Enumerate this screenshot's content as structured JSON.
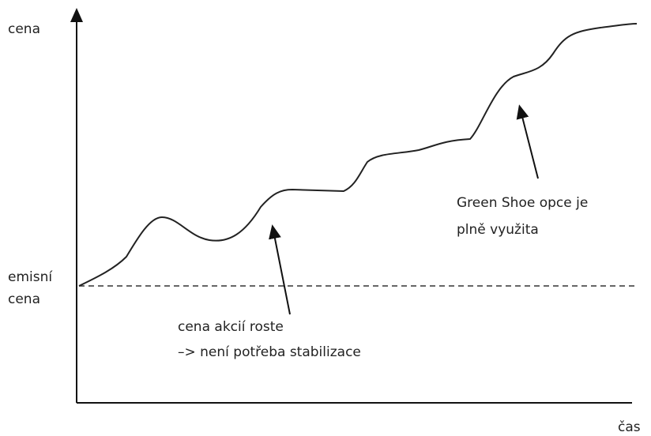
{
  "axis": {
    "y_label": "cena",
    "x_label": "čas"
  },
  "reference_line": {
    "label_lines": [
      "emisní",
      "cena"
    ]
  },
  "annotations": [
    {
      "lines": [
        "cena akcií roste",
        "–> není potřeba stabilizace"
      ]
    },
    {
      "lines": [
        "Green Shoe opce je",
        "plně využita"
      ]
    }
  ]
}
